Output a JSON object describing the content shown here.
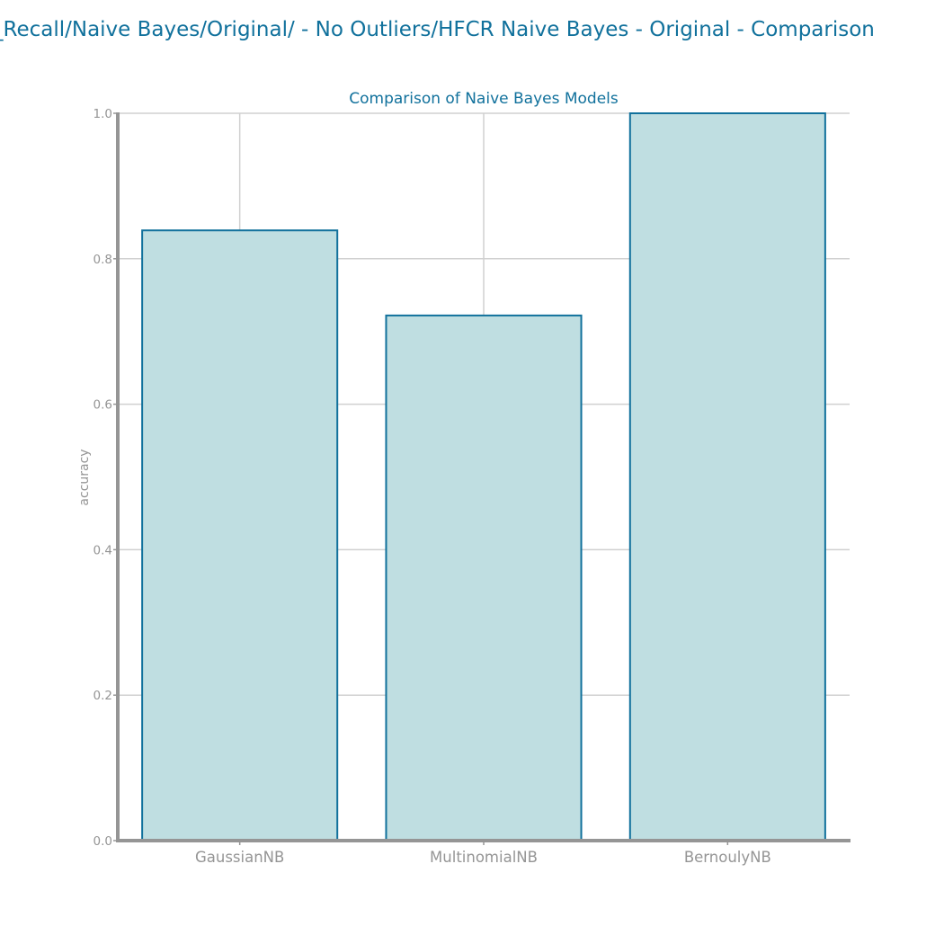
{
  "figure": {
    "suptitle": "_Recall/Naive Bayes/Original/ - No Outliers/HFCR Naive Bayes - Original - Comparison"
  },
  "colors": {
    "accent": "#11719c",
    "bar_fill": "#bfdee1",
    "axis": "#959595",
    "grid": "#d0d0d0"
  },
  "chart_data": {
    "type": "bar",
    "title": "Comparison of Naive Bayes Models",
    "xlabel": "",
    "ylabel": "accuracy",
    "categories": [
      "GaussianNB",
      "MultinomialNB",
      "BernoulyNB"
    ],
    "values": [
      0.839,
      0.722,
      1.0
    ],
    "ylim": [
      0,
      1.0
    ],
    "yticks": [
      "0.0",
      "0.2",
      "0.4",
      "0.6",
      "0.8",
      "1.0"
    ],
    "grid": true,
    "legend": "none"
  }
}
